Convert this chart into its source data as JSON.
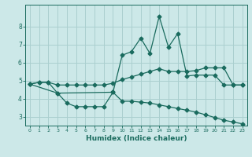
{
  "xlabel": "Humidex (Indice chaleur)",
  "ylabel": "",
  "bg_color": "#cce8e8",
  "grid_color": "#aacfcf",
  "line_color": "#1a6b5e",
  "xlim": [
    -0.5,
    23.5
  ],
  "ylim": [
    2.5,
    9.2
  ],
  "yticks": [
    3,
    4,
    5,
    6,
    7,
    8
  ],
  "xticks": [
    0,
    1,
    2,
    3,
    4,
    5,
    6,
    7,
    8,
    9,
    10,
    11,
    12,
    13,
    14,
    15,
    16,
    17,
    18,
    19,
    20,
    21,
    22,
    23
  ],
  "line1_x": [
    0,
    1,
    2,
    3,
    4,
    5,
    6,
    7,
    8,
    9,
    10,
    11,
    12,
    13,
    14,
    15,
    16,
    17,
    18,
    19,
    20,
    21,
    22,
    23
  ],
  "line1_y": [
    4.8,
    4.9,
    4.9,
    4.75,
    4.75,
    4.75,
    4.75,
    4.75,
    4.75,
    4.85,
    5.05,
    5.2,
    5.35,
    5.5,
    5.65,
    5.5,
    5.5,
    5.5,
    5.55,
    5.7,
    5.7,
    5.7,
    4.75,
    4.75
  ],
  "line2_x": [
    0,
    1,
    2,
    3,
    9,
    10,
    11,
    12,
    13,
    14,
    15,
    16,
    17,
    18,
    19,
    20,
    21,
    22,
    23
  ],
  "line2_y": [
    4.8,
    4.9,
    4.9,
    4.3,
    4.35,
    6.4,
    6.6,
    7.35,
    6.5,
    8.55,
    6.85,
    7.6,
    5.25,
    5.3,
    5.3,
    5.3,
    4.75,
    4.75,
    4.75
  ],
  "line3_x": [
    0,
    3,
    4,
    5,
    6,
    7,
    8,
    9,
    10,
    11,
    12,
    13,
    14,
    15,
    16,
    17,
    18,
    19,
    20,
    21,
    22,
    23
  ],
  "line3_y": [
    4.8,
    4.3,
    3.75,
    3.55,
    3.55,
    3.55,
    3.55,
    4.35,
    3.85,
    3.85,
    3.8,
    3.75,
    3.65,
    3.55,
    3.45,
    3.35,
    3.25,
    3.1,
    2.95,
    2.8,
    2.7,
    2.6
  ]
}
